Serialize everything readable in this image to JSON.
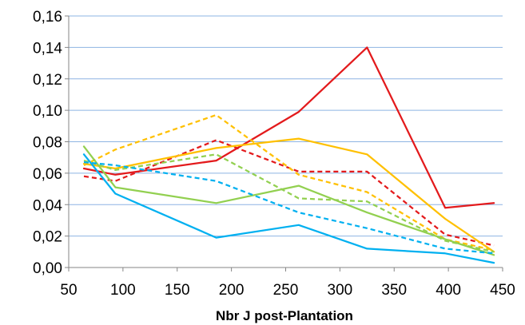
{
  "chart_data": {
    "type": "line",
    "title": "",
    "xlabel": "Nbr J post-Plantation",
    "ylabel": "",
    "xlim": [
      50,
      450
    ],
    "ylim": [
      0,
      0.16
    ],
    "xticks": [
      50,
      100,
      150,
      200,
      250,
      300,
      350,
      400,
      450
    ],
    "yticks": [
      0.0,
      0.02,
      0.04,
      0.06,
      0.08,
      0.1,
      0.12,
      0.14,
      0.16
    ],
    "xtick_labels": [
      "50",
      "100",
      "150",
      "200",
      "250",
      "300",
      "350",
      "400",
      "450"
    ],
    "ytick_labels": [
      "0,00",
      "0,02",
      "0,04",
      "0,06",
      "0,08",
      "0,10",
      "0,12",
      "0,14",
      "0,16"
    ],
    "grid": "horizontal",
    "legend": "none",
    "series": [
      {
        "color": "#e31a1c",
        "dash": "solid",
        "x": [
          64,
          93,
          186,
          262,
          325,
          397,
          442
        ],
        "y": [
          0.063,
          0.059,
          0.068,
          0.099,
          0.14,
          0.038,
          0.041
        ]
      },
      {
        "color": "#e31a1c",
        "dash": "dashed",
        "x": [
          64,
          93,
          186,
          262,
          325,
          397,
          442
        ],
        "y": [
          0.058,
          0.055,
          0.081,
          0.061,
          0.061,
          0.021,
          0.014
        ]
      },
      {
        "color": "#ffc000",
        "dash": "solid",
        "x": [
          64,
          93,
          186,
          262,
          325,
          397,
          442
        ],
        "y": [
          0.066,
          0.063,
          0.076,
          0.082,
          0.072,
          0.031,
          0.01
        ]
      },
      {
        "color": "#ffc000",
        "dash": "dashed",
        "x": [
          64,
          93,
          186,
          262,
          325,
          397,
          442
        ],
        "y": [
          0.065,
          0.075,
          0.097,
          0.059,
          0.048,
          0.018,
          0.011
        ]
      },
      {
        "color": "#92d050",
        "dash": "solid",
        "x": [
          64,
          93,
          186,
          262,
          325,
          397,
          442
        ],
        "y": [
          0.077,
          0.051,
          0.041,
          0.052,
          0.035,
          0.018,
          0.008
        ]
      },
      {
        "color": "#92d050",
        "dash": "dashed",
        "x": [
          64,
          93,
          186,
          262,
          325,
          397,
          442
        ],
        "y": [
          0.068,
          0.062,
          0.072,
          0.044,
          0.042,
          0.017,
          0.01
        ]
      },
      {
        "color": "#00b0f0",
        "dash": "solid",
        "x": [
          64,
          93,
          186,
          262,
          325,
          397,
          442
        ],
        "y": [
          0.072,
          0.047,
          0.019,
          0.027,
          0.012,
          0.009,
          0.003
        ]
      },
      {
        "color": "#00b0f0",
        "dash": "dashed",
        "x": [
          64,
          93,
          186,
          262,
          325,
          397,
          442
        ],
        "y": [
          0.067,
          0.065,
          0.055,
          0.035,
          0.025,
          0.012,
          0.009
        ]
      }
    ]
  }
}
